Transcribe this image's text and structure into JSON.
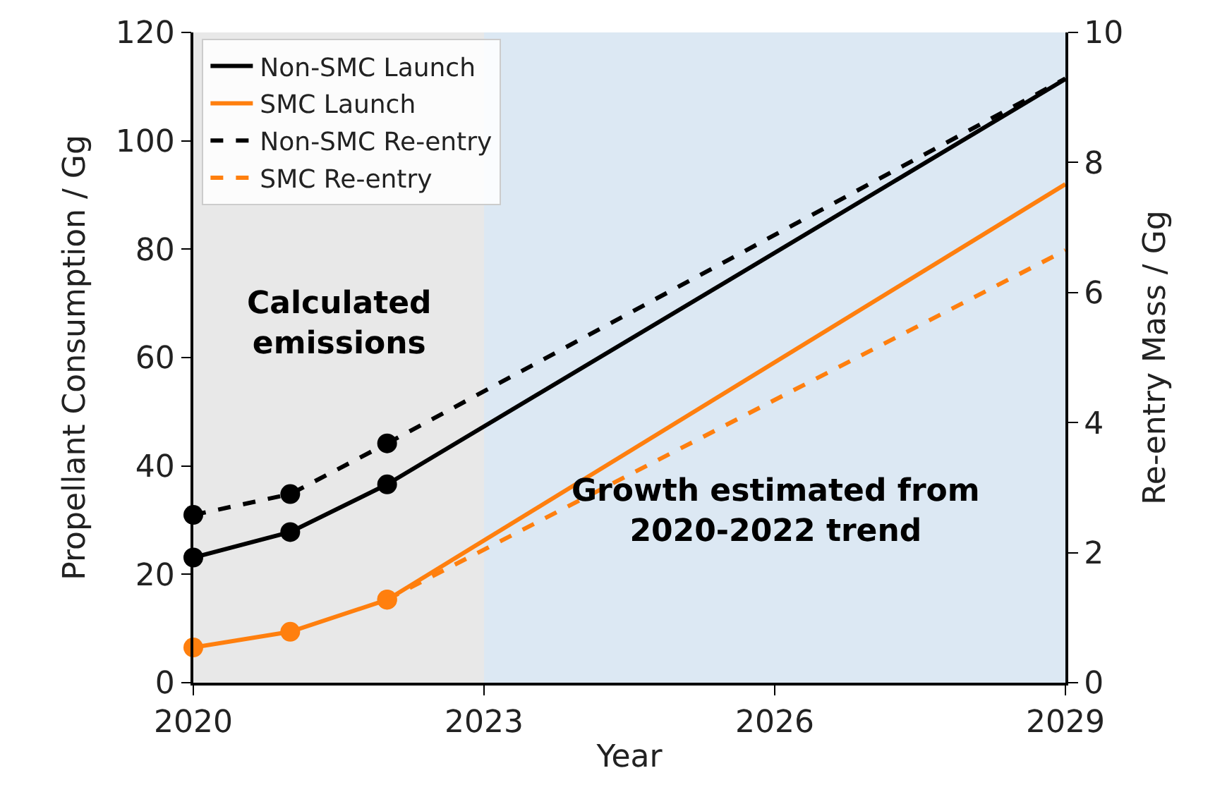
{
  "chart_data": {
    "type": "line",
    "xlabel": "Year",
    "ylabel": "Propellant Consumption / Gg",
    "y2label": "Re-entry Mass / Gg",
    "xlim": [
      2020,
      2029
    ],
    "xticks": [
      2020,
      2023,
      2026,
      2029
    ],
    "ylim": [
      0,
      120
    ],
    "yticks": [
      0,
      20,
      40,
      60,
      80,
      100,
      120
    ],
    "y2lim": [
      0,
      10
    ],
    "y2ticks": [
      0,
      2,
      4,
      6,
      8,
      10
    ],
    "grid": false,
    "legend": "top left",
    "series": [
      {
        "color": "#000000",
        "x": [
          2020,
          2021,
          2022
        ],
        "values": [
          23.1,
          27.8,
          36.6
        ],
        "marker": "circle",
        "line_style": "solid"
      },
      {
        "color": "#ff7f0e",
        "x": [
          2020,
          2021,
          2022
        ],
        "values": [
          6.5,
          9.4,
          15.3
        ],
        "marker": "circle",
        "line_style": "solid"
      },
      {
        "color": "#000000",
        "x": [
          2020,
          2021,
          2022
        ],
        "values": [
          2.58,
          2.9,
          3.68
        ],
        "marker": "circle",
        "line_style": "dashed",
        "axis": "y2"
      },
      {
        "color": "#ff7f0e",
        "x": [
          2022
        ],
        "values": [
          1.28
        ],
        "marker": "circle",
        "line_style": "dashed",
        "axis": "y2"
      },
      {
        "name": "Non-SMC Launch",
        "color": "#000000",
        "x": [
          2022,
          2029
        ],
        "values": [
          36.6,
          111.4
        ],
        "line_style": "solid"
      },
      {
        "name": "SMC Launch",
        "color": "#ff7f0e",
        "x": [
          2022,
          2029
        ],
        "values": [
          15.3,
          92
        ],
        "line_style": "solid"
      },
      {
        "name": "Non-SMC Re-entry",
        "color": "#000000",
        "x": [
          2022,
          2029
        ],
        "values": [
          3.68,
          9.29
        ],
        "line_style": "dashed",
        "axis": "y2"
      },
      {
        "name": "SMC Re-entry",
        "color": "#ff7f0e",
        "x": [
          2022,
          2029
        ],
        "values": [
          1.28,
          6.65
        ],
        "line_style": "dashed",
        "axis": "y2"
      }
    ],
    "bands": [
      {
        "axis": "x",
        "from": 2020,
        "to": 2023,
        "label": "Calculated emissions",
        "color": "#e8e8e8"
      },
      {
        "axis": "x",
        "from": 2023,
        "to": 2029,
        "label": "Growth estimated from 2020-2022 trend",
        "color": "#dce8f3"
      }
    ]
  }
}
